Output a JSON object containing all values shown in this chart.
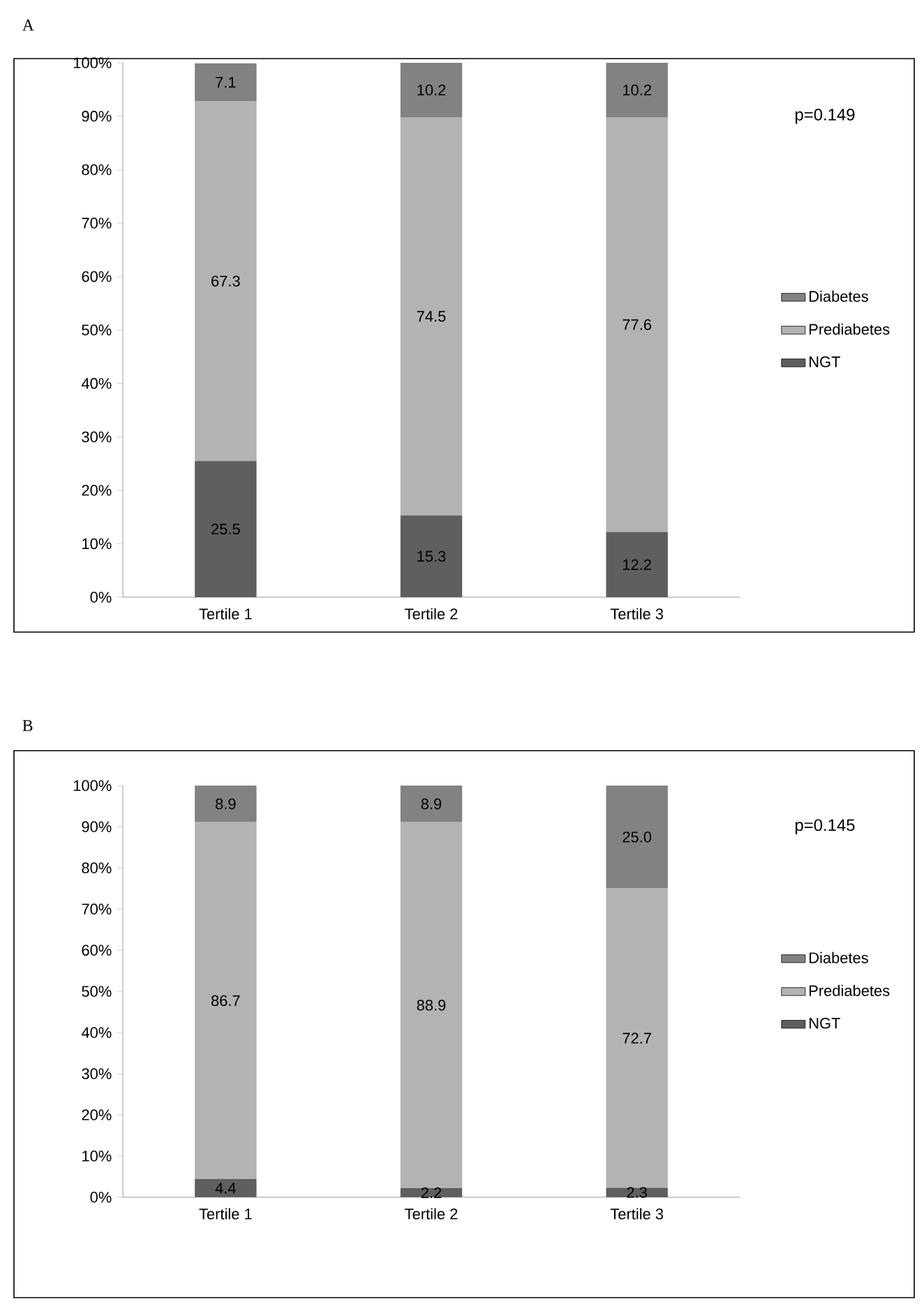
{
  "chart_data": [
    {
      "type": "bar",
      "title": "A",
      "stacked": true,
      "categories": [
        "Tertile 1",
        "Tertile 2",
        "Tertile 3"
      ],
      "series": [
        {
          "name": "NGT",
          "color": "#5f5f5f",
          "values": [
            25.5,
            15.3,
            12.2
          ],
          "value_labels": [
            "25.5",
            "15.3",
            "12.2"
          ]
        },
        {
          "name": "Prediabetes",
          "color": "#b3b3b3",
          "values": [
            67.3,
            74.5,
            77.6
          ],
          "value_labels": [
            "67.3",
            "74.5",
            "77.6"
          ]
        },
        {
          "name": "Diabetes",
          "color": "#828282",
          "values": [
            7.1,
            10.2,
            10.2
          ],
          "value_labels": [
            "7.1",
            "10.2",
            "10.2"
          ]
        }
      ],
      "ylim": [
        0,
        100
      ],
      "yticks": [
        {
          "value": 0,
          "label": "0%"
        },
        {
          "value": 10,
          "label": "10%"
        },
        {
          "value": 20,
          "label": "20%"
        },
        {
          "value": 30,
          "label": "30%"
        },
        {
          "value": 40,
          "label": "40%"
        },
        {
          "value": 50,
          "label": "50%"
        },
        {
          "value": 60,
          "label": "60%"
        },
        {
          "value": 70,
          "label": "70%"
        },
        {
          "value": 80,
          "label": "80%"
        },
        {
          "value": 90,
          "label": "90%"
        },
        {
          "value": 100,
          "label": "100%"
        }
      ],
      "legend": "right",
      "grid": false,
      "annotations": [
        "p=0.149"
      ]
    },
    {
      "type": "bar",
      "title": "B",
      "stacked": true,
      "categories": [
        "Tertile 1",
        "Tertile 2",
        "Tertile 3"
      ],
      "series": [
        {
          "name": "NGT",
          "color": "#5f5f5f",
          "values": [
            4.4,
            2.2,
            2.3
          ],
          "value_labels": [
            "4.4",
            "2.2",
            "2.3"
          ]
        },
        {
          "name": "Prediabetes",
          "color": "#b3b3b3",
          "values": [
            86.7,
            88.9,
            72.7
          ],
          "value_labels": [
            "86.7",
            "88.9",
            "72.7"
          ]
        },
        {
          "name": "Diabetes",
          "color": "#828282",
          "values": [
            8.9,
            8.9,
            25.0
          ],
          "value_labels": [
            "8.9",
            "8.9",
            "25.0"
          ]
        }
      ],
      "ylim": [
        0,
        100
      ],
      "yticks": [
        {
          "value": 0,
          "label": "0%"
        },
        {
          "value": 10,
          "label": "10%"
        },
        {
          "value": 20,
          "label": "20%"
        },
        {
          "value": 30,
          "label": "30%"
        },
        {
          "value": 40,
          "label": "40%"
        },
        {
          "value": 50,
          "label": "50%"
        },
        {
          "value": 60,
          "label": "60%"
        },
        {
          "value": 70,
          "label": "70%"
        },
        {
          "value": 80,
          "label": "80%"
        },
        {
          "value": 90,
          "label": "90%"
        },
        {
          "value": 100,
          "label": "100%"
        }
      ],
      "legend": "right",
      "grid": false,
      "annotations": [
        "p=0.145"
      ]
    }
  ]
}
